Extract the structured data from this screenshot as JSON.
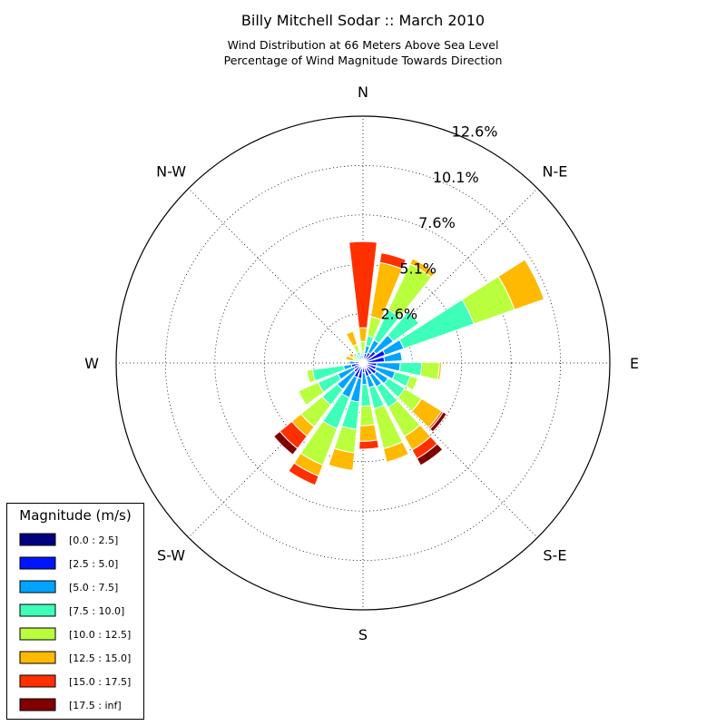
{
  "chart_data": {
    "type": "windrose",
    "title": "Billy Mitchell Sodar :: March 2010",
    "subtitle_lines": [
      "Wind Distribution at 66 Meters Above Sea Level",
      "Percentage of Wind Magnitude Towards Direction"
    ],
    "direction_labels": [
      "N",
      "N-E",
      "E",
      "S-E",
      "S",
      "S-W",
      "W",
      "N-W"
    ],
    "radial_tick_labels": [
      "2.6%",
      "5.1%",
      "7.6%",
      "10.1%",
      "12.6%"
    ],
    "radial_ticks": [
      2.52,
      5.04,
      7.56,
      10.08,
      12.6
    ],
    "rmax": 12.6,
    "bins_deg": 16,
    "legend": {
      "title": "Magnitude (m/s)",
      "items": [
        {
          "label": "[0.0 : 2.5]",
          "color": "#000080"
        },
        {
          "label": "[2.5 : 5.0]",
          "color": "#0014ff"
        },
        {
          "label": "[5.0 : 7.5]",
          "color": "#00a4ff"
        },
        {
          "label": "[7.5 : 10.0]",
          "color": "#3dffb9"
        },
        {
          "label": "[10.0 : 12.5]",
          "color": "#b9ff3d"
        },
        {
          "label": "[12.5 : 15.0]",
          "color": "#ffb900"
        },
        {
          "label": "[15.0 : 17.5]",
          "color": "#ff3000"
        },
        {
          "label": "[17.5 : inf]",
          "color": "#800000"
        }
      ]
    },
    "sectors": [
      {
        "direction_deg": 0,
        "cumulative": [
          0.2,
          0.3,
          0.5,
          0.6,
          1.1,
          1.8,
          6.2
        ]
      },
      {
        "direction_deg": 16,
        "cumulative": [
          0.2,
          0.5,
          0.9,
          1.4,
          2.4,
          5.2,
          5.7
        ]
      },
      {
        "direction_deg": 32,
        "cumulative": [
          0.2,
          0.6,
          1.3,
          3.0,
          5.6,
          5.9
        ]
      },
      {
        "direction_deg": 48,
        "cumulative": [
          0.2,
          0.8,
          1.9,
          3.5
        ]
      },
      {
        "direction_deg": 64,
        "cumulative": [
          0.2,
          1.2,
          2.2,
          6.0,
          8.2,
          9.8
        ]
      },
      {
        "direction_deg": 80,
        "cumulative": [
          0.2,
          1.1,
          2.0
        ]
      },
      {
        "direction_deg": 96,
        "cumulative": [
          0.2,
          0.7,
          1.9,
          3.0,
          3.9,
          4.0
        ]
      },
      {
        "direction_deg": 112,
        "cumulative": [
          0.2,
          0.7,
          1.7,
          2.5,
          2.9
        ]
      },
      {
        "direction_deg": 128,
        "cumulative": [
          0.3,
          0.8,
          1.5,
          2.5,
          3.5,
          4.7,
          4.8,
          5.0
        ]
      },
      {
        "direction_deg": 144,
        "cumulative": [
          0.3,
          0.7,
          1.4,
          2.6,
          4.3,
          5.1,
          5.6,
          6.0
        ]
      },
      {
        "direction_deg": 160,
        "cumulative": [
          0.3,
          0.7,
          1.3,
          2.4,
          4.5,
          5.2
        ]
      },
      {
        "direction_deg": 176,
        "cumulative": [
          0.2,
          0.5,
          1.1,
          2.2,
          3.2,
          4.0,
          4.4
        ]
      },
      {
        "direction_deg": 192,
        "cumulative": [
          0.3,
          0.8,
          2.0,
          3.4,
          4.6,
          5.5
        ]
      },
      {
        "direction_deg": 208,
        "cumulative": [
          0.2,
          0.8,
          1.9,
          3.6,
          5.6,
          6.2,
          6.7
        ]
      },
      {
        "direction_deg": 224,
        "cumulative": [
          0.2,
          0.6,
          1.7,
          2.7,
          4.1,
          4.7,
          5.5,
          5.9
        ]
      },
      {
        "direction_deg": 240,
        "cumulative": [
          0.2,
          0.5,
          1.4,
          2.5,
          3.6
        ]
      },
      {
        "direction_deg": 256,
        "cumulative": [
          0.2,
          0.6,
          1.0,
          2.6,
          2.9
        ]
      },
      {
        "direction_deg": 272,
        "cumulative": [
          0.2,
          0.4,
          0.7
        ]
      },
      {
        "direction_deg": 288,
        "cumulative": [
          0.1,
          0.2,
          0.3,
          0.4,
          0.5,
          0.9
        ]
      },
      {
        "direction_deg": 304,
        "cumulative": [
          0.1,
          0.2,
          0.3,
          0.4,
          0.6,
          0.8
        ]
      },
      {
        "direction_deg": 320,
        "cumulative": [
          0.1,
          0.2,
          0.3,
          0.5
        ]
      },
      {
        "direction_deg": 336,
        "cumulative": [
          0.1,
          0.2,
          0.4,
          0.6,
          1.0,
          1.7
        ]
      },
      {
        "direction_deg": 352,
        "cumulative": [
          0.1,
          0.2,
          0.4,
          0.5
        ]
      }
    ]
  }
}
